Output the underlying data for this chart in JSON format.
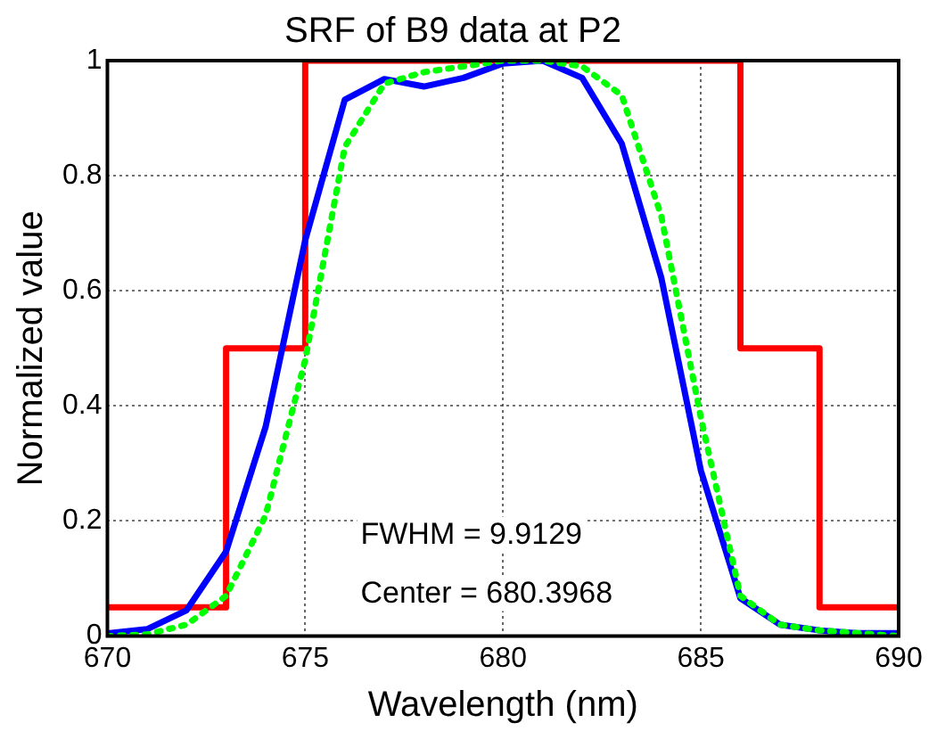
{
  "chart_data": {
    "type": "line",
    "title": "SRF of B9 data at P2",
    "xlabel": "Wavelength (nm)",
    "ylabel": "Normalized value",
    "xlim": [
      670,
      690
    ],
    "xticks": [
      670,
      675,
      680,
      685,
      690
    ],
    "ylim": [
      0,
      1
    ],
    "yticks": [
      0,
      0.2,
      0.4,
      0.6,
      0.8,
      1
    ],
    "grid": true,
    "legend": false,
    "marker": "none",
    "annotations": [
      "FWHM = 9.9129",
      "Center = 680.3968"
    ],
    "series": [
      {
        "type": "step",
        "color": "#ff0000",
        "line_style": "solid",
        "x": [
          670,
          673,
          675,
          686,
          688,
          690
        ],
        "values": [
          0.05,
          0.5,
          1,
          0.5,
          0.05,
          0.05
        ]
      },
      {
        "type": "line",
        "color": "#0000ff",
        "line_style": "solid",
        "x": [
          670,
          671,
          672,
          673,
          674,
          675,
          676,
          677,
          678,
          679,
          680,
          681,
          682,
          683,
          684,
          685,
          686,
          687,
          688,
          689,
          690
        ],
        "values": [
          0.005,
          0.012,
          0.045,
          0.147,
          0.364,
          0.688,
          0.932,
          0.968,
          0.955,
          0.97,
          0.995,
          1,
          0.97,
          0.856,
          0.623,
          0.288,
          0.066,
          0.02,
          0.01,
          0.005,
          0.005
        ]
      },
      {
        "type": "line",
        "color": "#00ff00",
        "line_style": "dotted",
        "x": [
          670,
          671,
          672,
          673,
          674,
          675,
          676,
          677,
          678,
          679,
          680,
          681,
          682,
          683,
          684,
          685,
          686,
          687,
          688,
          689,
          690
        ],
        "values": [
          0,
          0.003,
          0.02,
          0.07,
          0.21,
          0.48,
          0.85,
          0.96,
          0.98,
          0.99,
          1,
          1,
          0.99,
          0.94,
          0.73,
          0.38,
          0.07,
          0.02,
          0.01,
          0.005,
          0
        ]
      }
    ]
  }
}
